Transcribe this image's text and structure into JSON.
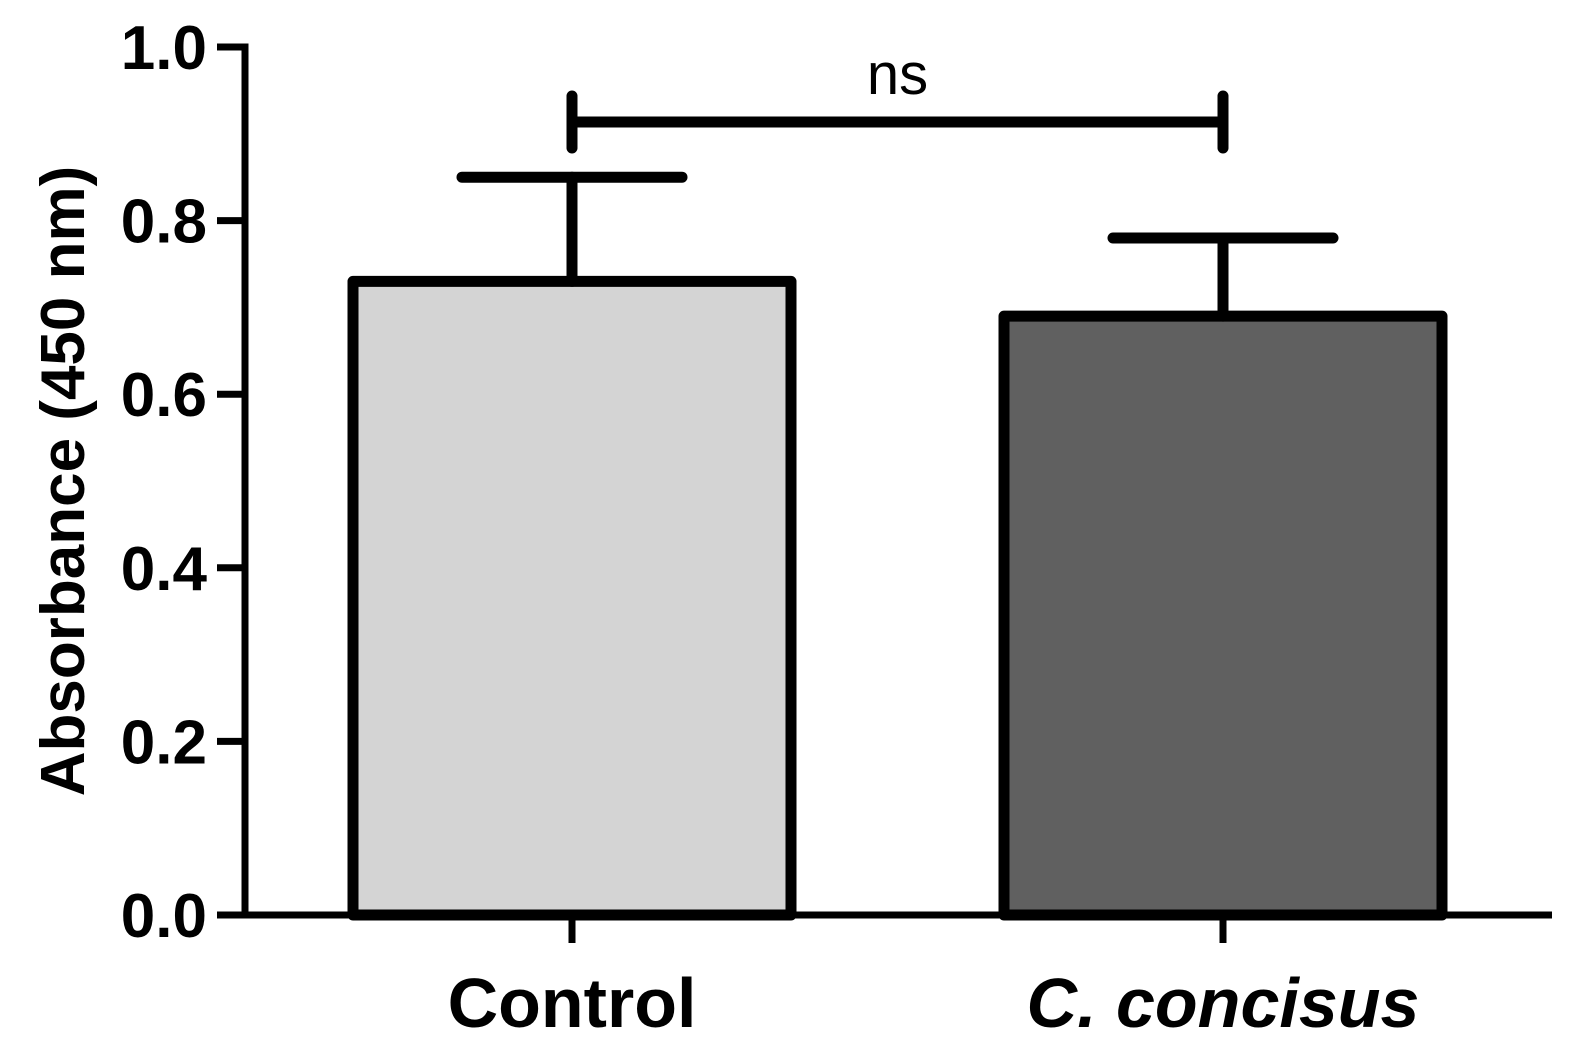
{
  "chart_data": {
    "type": "bar",
    "categories": [
      "Control",
      "C. concisus"
    ],
    "category_styles": [
      "normal",
      "italic"
    ],
    "values": [
      0.73,
      0.69
    ],
    "error_upper": [
      0.85,
      0.78
    ],
    "bar_colors": [
      "#d4d4d4",
      "#606060"
    ],
    "ylabel": "Absorbance (450 nm)",
    "ylim": [
      0.0,
      1.0
    ],
    "yticks": [
      "0.0",
      "0.2",
      "0.4",
      "0.6",
      "0.8",
      "1.0"
    ],
    "significance": {
      "label": "ns",
      "between": [
        "Control",
        "C. concisus"
      ]
    },
    "grid": false,
    "legend": "none"
  }
}
